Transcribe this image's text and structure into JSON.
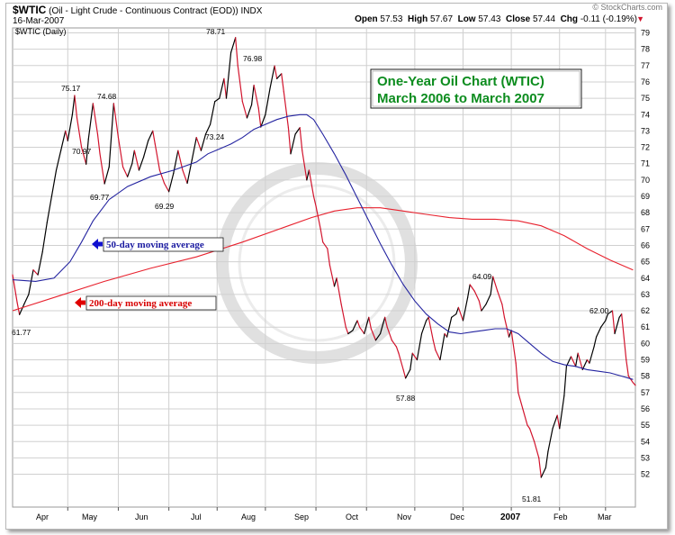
{
  "header": {
    "symbol": "$WTIC",
    "name": "(Oil - Light Crude - Continuous Contract (EOD))",
    "exchange": "INDX",
    "date": "16-Mar-2007",
    "series_label": "$WTIC (Daily)",
    "source": "© StockCharts.com",
    "quote": [
      {
        "label": "Open",
        "value": "57.53"
      },
      {
        "label": "High",
        "value": "57.67"
      },
      {
        "label": "Low",
        "value": "57.43"
      },
      {
        "label": "Close",
        "value": "57.44"
      },
      {
        "label": "Chg",
        "value": "-0.11 (-0.19%)"
      }
    ]
  },
  "colors": {
    "up": "#000000",
    "down": "#d2142d",
    "ma50": "#2323a0",
    "ma200": "#e8222e",
    "title_green": "#0c8c1e",
    "grid": "#d0d0d0",
    "arrow_blue": "#1010d0",
    "arrow_red": "#e00000"
  },
  "title_box": {
    "line1": "One-Year Oil Chart (WTIC)",
    "line2": "March 2006 to March 2007"
  },
  "annotations": {
    "ma50": "50-day moving average",
    "ma200": "200-day moving average"
  },
  "chart_data": {
    "type": "line",
    "ylim": [
      51,
      80
    ],
    "y_ticks": [
      52,
      53,
      54,
      55,
      56,
      57,
      58,
      59,
      60,
      61,
      62,
      63,
      64,
      65,
      66,
      67,
      68,
      69,
      70,
      71,
      72,
      73,
      74,
      75,
      76,
      77,
      78,
      79
    ],
    "x_tick_labels": [
      "Apr",
      "May",
      "Jun",
      "Jul",
      "Aug",
      "Sep",
      "Oct",
      "Nov",
      "Dec",
      "2007",
      "Feb",
      "Mar"
    ],
    "price_labels": [
      "61.77",
      "75.17",
      "70.97",
      "74.68",
      "69.77",
      "69.29",
      "78.71",
      "73.24",
      "76.98",
      "57.88",
      "64.09",
      "51.81",
      "62.00"
    ],
    "grid": true,
    "series": [
      {
        "points": [
          [
            0,
            64.2
          ],
          [
            2,
            62.5
          ],
          [
            3,
            61.77
          ],
          [
            5,
            62.4
          ],
          [
            7,
            63.0
          ],
          [
            9,
            64.5
          ],
          [
            11,
            64.2
          ],
          [
            13,
            65.6
          ],
          [
            15,
            67.4
          ],
          [
            17,
            69.0
          ],
          [
            19,
            70.6
          ],
          [
            21,
            71.8
          ],
          [
            23,
            73.0
          ],
          [
            24,
            72.4
          ],
          [
            26,
            74.0
          ],
          [
            27,
            75.17
          ],
          [
            28,
            73.8
          ],
          [
            30,
            72.0
          ],
          [
            32,
            70.97
          ],
          [
            33,
            72.5
          ],
          [
            35,
            74.68
          ],
          [
            37,
            72.8
          ],
          [
            38,
            71.6
          ],
          [
            40,
            69.77
          ],
          [
            42,
            70.8
          ],
          [
            44,
            74.68
          ],
          [
            46,
            72.6
          ],
          [
            48,
            70.8
          ],
          [
            50,
            70.2
          ],
          [
            52,
            71.0
          ],
          [
            53,
            71.8
          ],
          [
            55,
            70.6
          ],
          [
            57,
            71.4
          ],
          [
            59,
            72.4
          ],
          [
            61,
            73.0
          ],
          [
            62,
            72.2
          ],
          [
            64,
            70.6
          ],
          [
            66,
            69.8
          ],
          [
            68,
            69.29
          ],
          [
            70,
            70.4
          ],
          [
            72,
            71.8
          ],
          [
            74,
            70.6
          ],
          [
            76,
            69.8
          ],
          [
            78,
            71.2
          ],
          [
            80,
            72.6
          ],
          [
            82,
            71.8
          ],
          [
            84,
            72.8
          ],
          [
            86,
            73.4
          ],
          [
            88,
            74.8
          ],
          [
            90,
            75.0
          ],
          [
            92,
            76.2
          ],
          [
            93,
            75.0
          ],
          [
            95,
            77.8
          ],
          [
            97,
            78.71
          ],
          [
            98,
            77.0
          ],
          [
            100,
            74.8
          ],
          [
            102,
            73.8
          ],
          [
            104,
            74.6
          ],
          [
            105,
            75.8
          ],
          [
            107,
            74.4
          ],
          [
            108,
            73.24
          ],
          [
            110,
            74.0
          ],
          [
            112,
            75.6
          ],
          [
            114,
            76.98
          ],
          [
            115,
            76.2
          ],
          [
            117,
            76.5
          ],
          [
            118,
            75.4
          ],
          [
            120,
            73.2
          ],
          [
            121,
            71.6
          ],
          [
            123,
            72.8
          ],
          [
            125,
            73.2
          ],
          [
            126,
            71.8
          ],
          [
            128,
            70.0
          ],
          [
            129,
            70.6
          ],
          [
            131,
            69.0
          ],
          [
            132,
            68.4
          ],
          [
            134,
            67.0
          ],
          [
            135,
            66.2
          ],
          [
            137,
            65.8
          ],
          [
            138,
            64.8
          ],
          [
            140,
            63.5
          ],
          [
            141,
            64.0
          ],
          [
            143,
            62.4
          ],
          [
            145,
            61.0
          ],
          [
            146,
            60.6
          ],
          [
            148,
            60.8
          ],
          [
            150,
            61.4
          ],
          [
            151,
            61.0
          ],
          [
            153,
            60.6
          ],
          [
            155,
            61.6
          ],
          [
            156,
            60.9
          ],
          [
            158,
            60.2
          ],
          [
            160,
            60.6
          ],
          [
            162,
            61.6
          ],
          [
            163,
            61.0
          ],
          [
            165,
            60.2
          ],
          [
            167,
            59.8
          ],
          [
            168,
            59.4
          ],
          [
            170,
            58.4
          ],
          [
            171,
            57.88
          ],
          [
            173,
            58.4
          ],
          [
            174,
            59.4
          ],
          [
            176,
            59.0
          ],
          [
            178,
            60.6
          ],
          [
            180,
            61.4
          ],
          [
            181,
            61.6
          ],
          [
            183,
            60.2
          ],
          [
            184,
            59.6
          ],
          [
            186,
            59.0
          ],
          [
            188,
            60.6
          ],
          [
            189,
            60.4
          ],
          [
            191,
            61.6
          ],
          [
            193,
            61.8
          ],
          [
            194,
            62.2
          ],
          [
            196,
            61.4
          ],
          [
            198,
            62.8
          ],
          [
            199,
            63.6
          ],
          [
            201,
            63.2
          ],
          [
            203,
            62.6
          ],
          [
            204,
            62.0
          ],
          [
            206,
            62.4
          ],
          [
            208,
            63.0
          ],
          [
            209,
            64.09
          ],
          [
            211,
            63.2
          ],
          [
            213,
            62.4
          ],
          [
            214,
            61.6
          ],
          [
            216,
            60.4
          ],
          [
            217,
            60.8
          ],
          [
            219,
            58.8
          ],
          [
            220,
            57.0
          ],
          [
            222,
            56.0
          ],
          [
            224,
            55.0
          ],
          [
            225,
            54.8
          ],
          [
            227,
            54.0
          ],
          [
            229,
            53.0
          ],
          [
            230,
            51.81
          ],
          [
            232,
            52.4
          ],
          [
            233,
            53.4
          ],
          [
            235,
            54.8
          ],
          [
            237,
            55.6
          ],
          [
            238,
            54.8
          ],
          [
            240,
            56.8
          ],
          [
            241,
            58.6
          ],
          [
            243,
            59.2
          ],
          [
            245,
            58.6
          ],
          [
            246,
            59.4
          ],
          [
            248,
            58.4
          ],
          [
            250,
            59.0
          ],
          [
            251,
            58.8
          ],
          [
            253,
            59.8
          ],
          [
            254,
            60.4
          ],
          [
            256,
            61.0
          ],
          [
            258,
            61.4
          ],
          [
            259,
            61.8
          ],
          [
            261,
            62.0
          ],
          [
            262,
            60.6
          ],
          [
            264,
            61.6
          ],
          [
            265,
            61.8
          ],
          [
            267,
            59.0
          ],
          [
            268,
            58.0
          ],
          [
            270,
            57.6
          ],
          [
            271,
            57.44
          ]
        ]
      },
      {
        "name": "50-day moving average",
        "points": [
          [
            0,
            63.9
          ],
          [
            10,
            63.8
          ],
          [
            18,
            64.0
          ],
          [
            25,
            65.0
          ],
          [
            30,
            66.2
          ],
          [
            35,
            67.5
          ],
          [
            42,
            68.8
          ],
          [
            50,
            69.6
          ],
          [
            60,
            70.2
          ],
          [
            70,
            70.6
          ],
          [
            80,
            71.1
          ],
          [
            85,
            71.6
          ],
          [
            90,
            71.9
          ],
          [
            95,
            72.2
          ],
          [
            100,
            72.6
          ],
          [
            105,
            73.1
          ],
          [
            110,
            73.4
          ],
          [
            115,
            73.7
          ],
          [
            120,
            73.9
          ],
          [
            125,
            74.0
          ],
          [
            128,
            74.0
          ],
          [
            131,
            73.7
          ],
          [
            135,
            72.8
          ],
          [
            140,
            71.6
          ],
          [
            145,
            70.3
          ],
          [
            150,
            68.9
          ],
          [
            155,
            67.5
          ],
          [
            160,
            66.1
          ],
          [
            165,
            64.8
          ],
          [
            170,
            63.6
          ],
          [
            175,
            62.6
          ],
          [
            180,
            61.8
          ],
          [
            185,
            61.2
          ],
          [
            190,
            60.7
          ],
          [
            195,
            60.6
          ],
          [
            200,
            60.7
          ],
          [
            205,
            60.8
          ],
          [
            210,
            60.9
          ],
          [
            215,
            60.9
          ],
          [
            220,
            60.6
          ],
          [
            225,
            60.0
          ],
          [
            230,
            59.4
          ],
          [
            235,
            58.9
          ],
          [
            240,
            58.7
          ],
          [
            245,
            58.6
          ],
          [
            250,
            58.4
          ],
          [
            255,
            58.3
          ],
          [
            260,
            58.2
          ],
          [
            265,
            58.0
          ],
          [
            270,
            57.8
          ]
        ]
      },
      {
        "name": "200-day moving average",
        "points": [
          [
            0,
            62.0
          ],
          [
            20,
            62.9
          ],
          [
            40,
            63.8
          ],
          [
            60,
            64.6
          ],
          [
            80,
            65.3
          ],
          [
            100,
            66.2
          ],
          [
            120,
            67.2
          ],
          [
            130,
            67.7
          ],
          [
            140,
            68.1
          ],
          [
            150,
            68.3
          ],
          [
            160,
            68.3
          ],
          [
            170,
            68.1
          ],
          [
            180,
            67.9
          ],
          [
            190,
            67.7
          ],
          [
            200,
            67.6
          ],
          [
            210,
            67.6
          ],
          [
            220,
            67.5
          ],
          [
            230,
            67.2
          ],
          [
            240,
            66.6
          ],
          [
            250,
            65.8
          ],
          [
            260,
            65.1
          ],
          [
            270,
            64.5
          ]
        ]
      }
    ]
  }
}
